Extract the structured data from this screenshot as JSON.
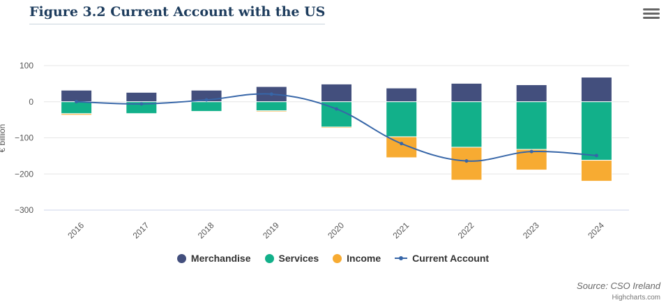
{
  "title": "Figure 3.2 Current Account with the US",
  "menu_icon": "hamburger-menu-icon",
  "chart_data": {
    "type": "bar",
    "stacking": "normal",
    "title": "Figure 3.2 Current Account with the US",
    "xlabel": "",
    "ylabel": "€ billion",
    "ylim": [
      -300,
      100
    ],
    "yticks": [
      100,
      0,
      -100,
      -200,
      -300
    ],
    "ytick_labels": [
      "100",
      "0",
      "−100",
      "−200",
      "−300"
    ],
    "categories": [
      "2016",
      "2017",
      "2018",
      "2019",
      "2020",
      "2021",
      "2022",
      "2023",
      "2024"
    ],
    "series": [
      {
        "name": "Merchandise",
        "type": "bar",
        "color": "#434f7d",
        "values": [
          32,
          26,
          32,
          42,
          49,
          38,
          51,
          47,
          68
        ]
      },
      {
        "name": "Services",
        "type": "bar",
        "color": "#12b08a",
        "values": [
          -33,
          -33,
          -27,
          -25,
          -70,
          -97,
          -126,
          -132,
          -162
        ]
      },
      {
        "name": "Income",
        "type": "bar",
        "color": "#f7ab32",
        "values": [
          -4,
          -2,
          -2,
          -3,
          -3,
          -58,
          -91,
          -57,
          -58
        ]
      },
      {
        "name": "Current Account",
        "type": "line",
        "color": "#3766a8",
        "values": [
          0,
          -6,
          5,
          21,
          -20,
          -116,
          -164,
          -138,
          -149
        ]
      }
    ],
    "legend_position": "bottom-center",
    "grid": true
  },
  "source": "Source: CSO Ireland",
  "credits": "Highcharts.com"
}
